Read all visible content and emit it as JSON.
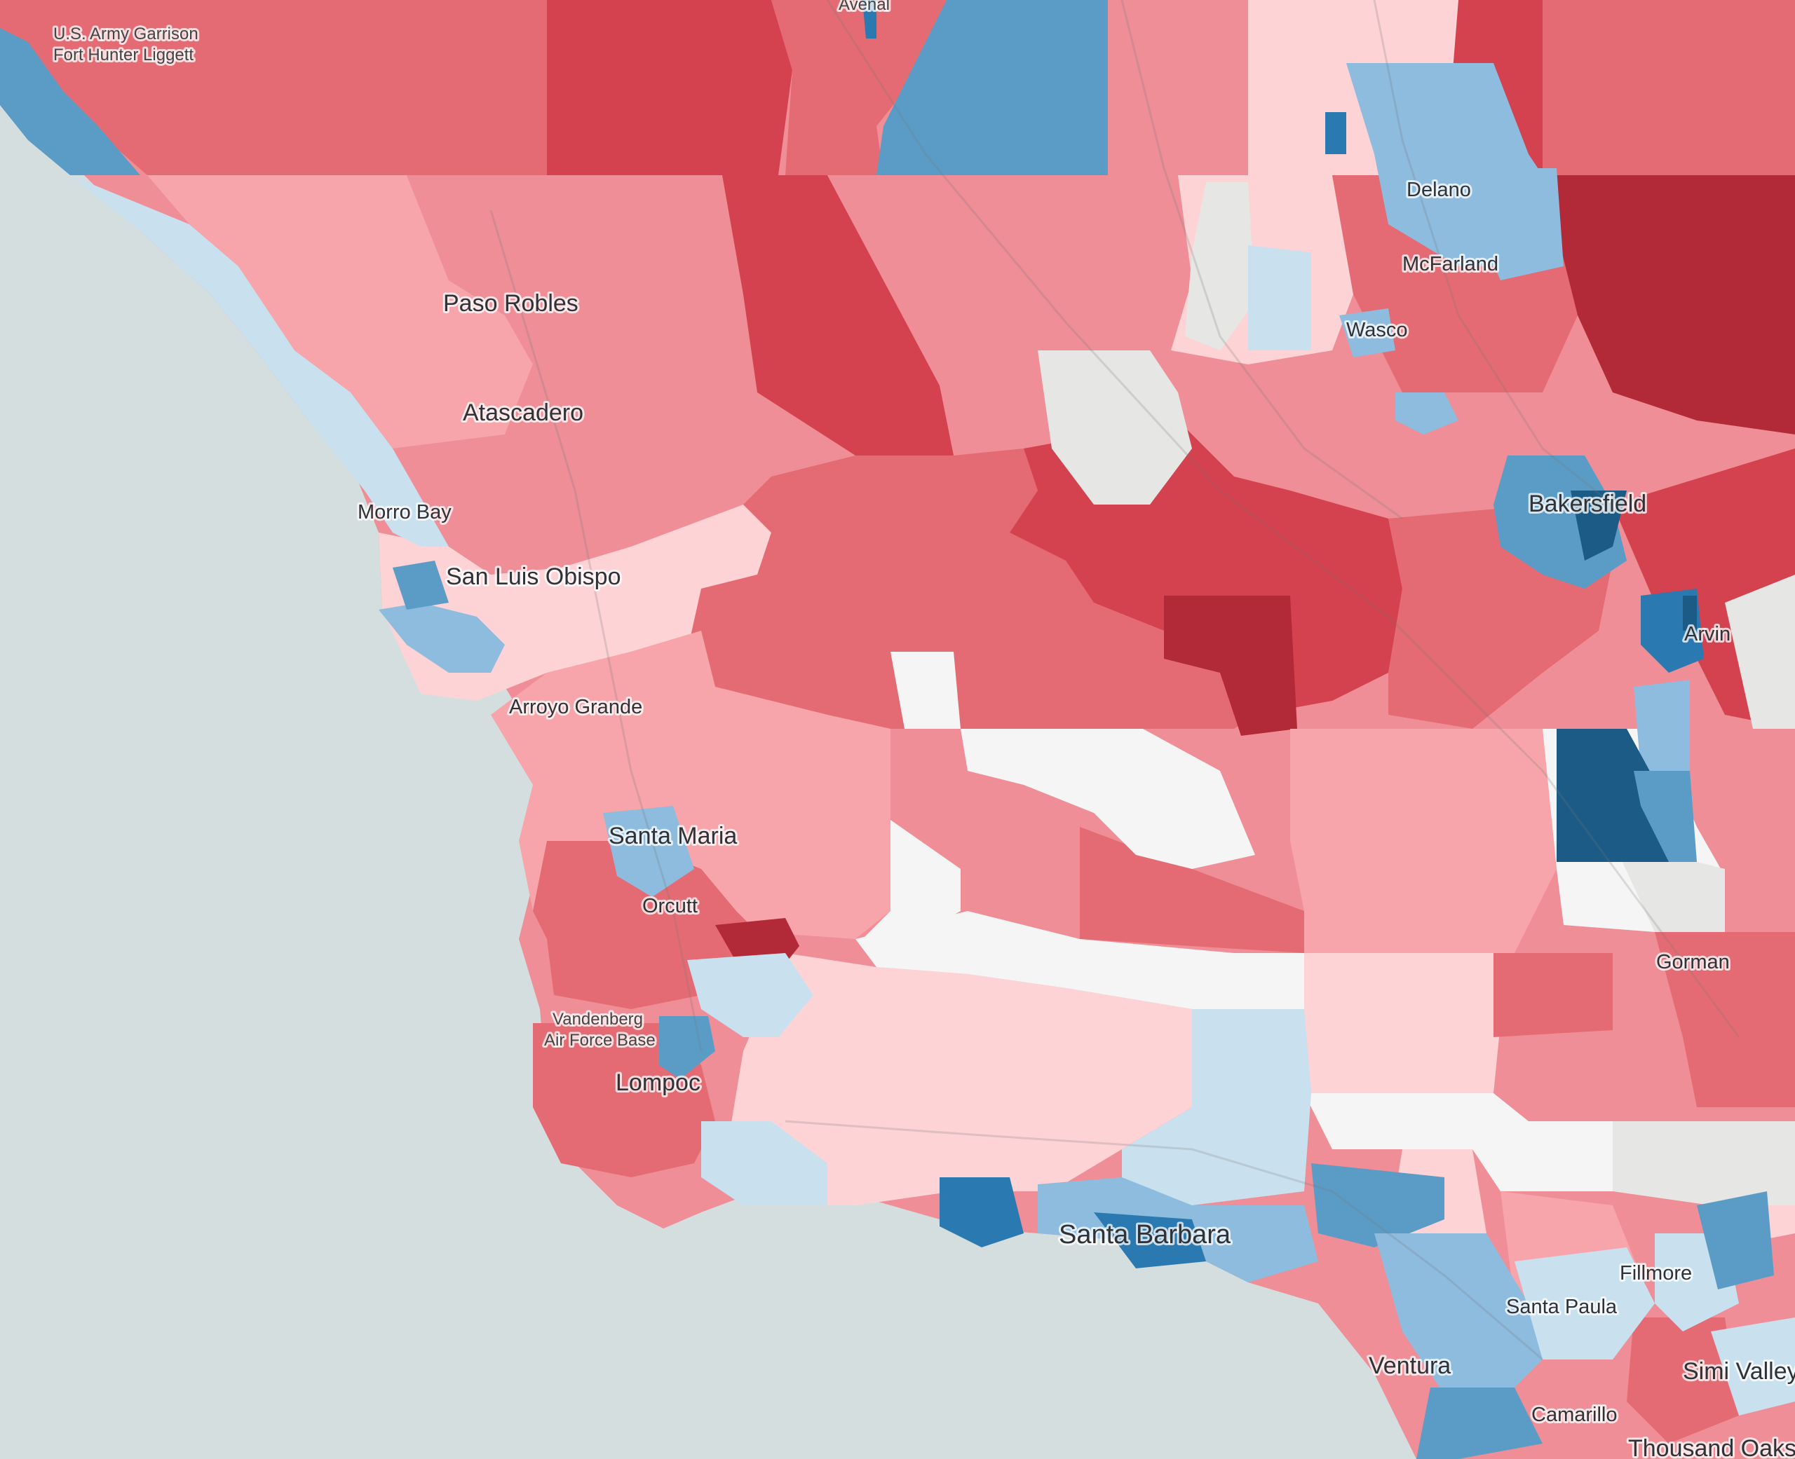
{
  "map": {
    "colors": {
      "ocean": "#d5dedf",
      "no_data": "#f5f5f5",
      "tie_gray": "#e6e6e4",
      "rep_1": "#fdd3d6",
      "rep_2": "#f7a4aa",
      "rep_3": "#ef8e96",
      "rep_4": "#e46b74",
      "rep_5": "#d4414f",
      "rep_6": "#b22a37",
      "dem_1": "#c9e0ee",
      "dem_2": "#8dbcdf",
      "dem_3": "#5a9cc6",
      "dem_4": "#2b79b1",
      "dem_5": "#1b5b86"
    },
    "labels": {
      "fort_hunter_liggett": [
        "U.S. Army Garrison",
        "Fort Hunter Liggett"
      ],
      "avenal": "Avenal",
      "delano": "Delano",
      "mcfarland": "McFarland",
      "wasco": "Wasco",
      "paso_robles": "Paso Robles",
      "atascadero": "Atascadero",
      "morro_bay": "Morro Bay",
      "san_luis_obispo": "San Luis Obispo",
      "arroyo_grande": "Arroyo Grande",
      "bakersfield": "Bakersfield",
      "arvin": "Arvin",
      "santa_maria": "Santa Maria",
      "orcutt": "Orcutt",
      "vandenberg": [
        "Vandenberg",
        "Air Force Base"
      ],
      "lompoc": "Lompoc",
      "gorman": "Gorman",
      "santa_barbara": "Santa Barbara",
      "fillmore": "Fillmore",
      "santa_paula": "Santa Paula",
      "ventura": "Ventura",
      "simi_valley": "Simi Valley",
      "camarillo": "Camarillo",
      "thousand_oaks": "Thousand Oaks"
    }
  }
}
